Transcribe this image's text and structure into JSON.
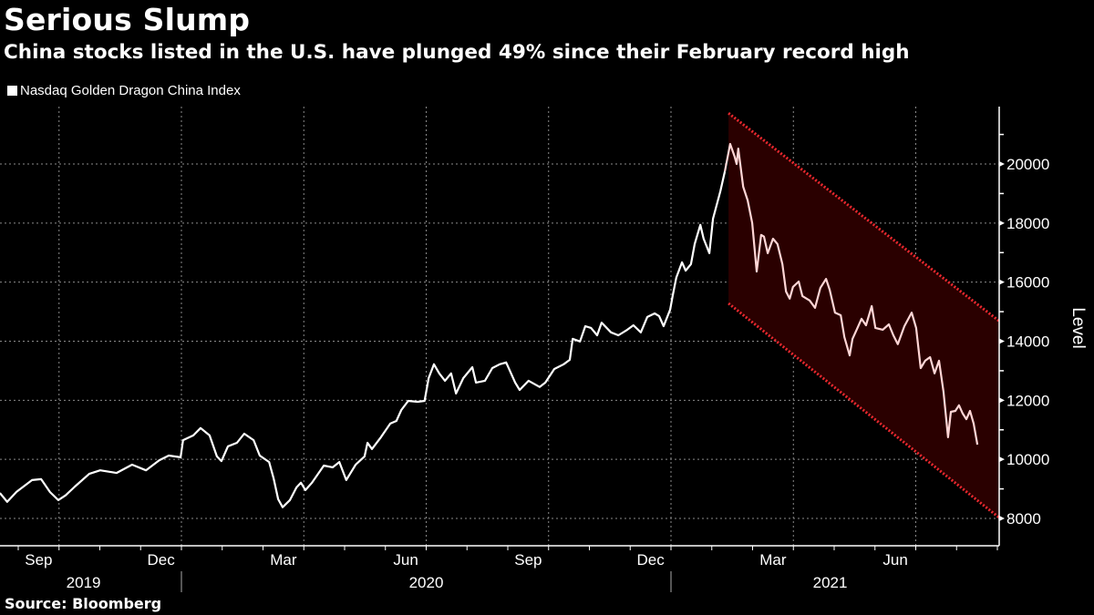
{
  "title": "Serious Slump",
  "subtitle": "China stocks listed in the U.S. have plunged 49% since their February record high",
  "source": "Source: Bloomberg",
  "colors": {
    "background": "#000000",
    "line": "#ffffff",
    "line_highlight": "#ffd6d6",
    "channel_fill": "#2a0000",
    "channel_edge": "#e8282e",
    "grid": "#8a8a8a"
  },
  "chart_data": {
    "type": "line",
    "title": "Serious Slump",
    "subtitle": "China stocks listed in the U.S. have plunged 49% since their February record high",
    "ylabel": "Level",
    "xlabel": "",
    "ylim": [
      7500,
      21900
    ],
    "y_ticks": [
      8000,
      10000,
      12000,
      14000,
      16000,
      18000,
      20000
    ],
    "y_tick_labels": [
      "8000",
      "10000",
      "12000",
      "14000",
      "16000",
      "18000",
      "20000"
    ],
    "y_axis_side": "right",
    "x_unit": "months since 2019-09-01",
    "xlim": [
      -0.45,
      24.1
    ],
    "month_ticks": [
      0,
      1,
      2,
      3,
      4,
      5,
      6,
      7,
      8,
      9,
      10,
      11,
      12,
      13,
      14,
      15,
      16,
      17,
      18,
      19,
      20,
      21,
      22,
      23,
      24
    ],
    "x_tick_labels": [
      {
        "t": 0,
        "label": "Sep"
      },
      {
        "t": 3,
        "label": "Dec"
      },
      {
        "t": 6,
        "label": "Mar"
      },
      {
        "t": 9,
        "label": "Jun"
      },
      {
        "t": 12,
        "label": "Sep"
      },
      {
        "t": 15,
        "label": "Dec"
      },
      {
        "t": 18,
        "label": "Mar"
      },
      {
        "t": 21,
        "label": "Jun"
      }
    ],
    "year_labels": [
      {
        "label": "2019",
        "t": 1.6
      },
      {
        "label": "2020",
        "t": 10.0
      },
      {
        "label": "2021",
        "t": 19.9
      }
    ],
    "year_separators": [
      4,
      16
    ],
    "grid": true,
    "vertical_grid_months": [
      1,
      4,
      7,
      10,
      13,
      16,
      19,
      22
    ],
    "legend": {
      "position": "top-left",
      "entries": [
        "Nasdaq Golden Dragon China Index"
      ]
    },
    "series": [
      {
        "name": "Nasdaq Golden Dragon China Index",
        "points": [
          [
            -0.45,
            8860
          ],
          [
            -0.27,
            8560
          ],
          [
            -0.04,
            8900
          ],
          [
            0.34,
            9300
          ],
          [
            0.56,
            9330
          ],
          [
            0.78,
            8890
          ],
          [
            0.98,
            8620
          ],
          [
            1.16,
            8780
          ],
          [
            1.39,
            9080
          ],
          [
            1.74,
            9510
          ],
          [
            2.01,
            9630
          ],
          [
            2.41,
            9540
          ],
          [
            2.79,
            9820
          ],
          [
            3.13,
            9630
          ],
          [
            3.46,
            9970
          ],
          [
            3.69,
            10130
          ],
          [
            3.98,
            10070
          ],
          [
            4.04,
            10650
          ],
          [
            4.29,
            10810
          ],
          [
            4.47,
            11060
          ],
          [
            4.69,
            10810
          ],
          [
            4.87,
            10100
          ],
          [
            4.98,
            9940
          ],
          [
            5.14,
            10440
          ],
          [
            5.36,
            10560
          ],
          [
            5.54,
            10870
          ],
          [
            5.77,
            10650
          ],
          [
            5.92,
            10130
          ],
          [
            6.15,
            9910
          ],
          [
            6.26,
            9360
          ],
          [
            6.37,
            8650
          ],
          [
            6.48,
            8380
          ],
          [
            6.66,
            8620
          ],
          [
            6.82,
            9050
          ],
          [
            6.93,
            9210
          ],
          [
            7.04,
            8960
          ],
          [
            7.2,
            9210
          ],
          [
            7.49,
            9790
          ],
          [
            7.71,
            9730
          ],
          [
            7.87,
            9910
          ],
          [
            8.04,
            9300
          ],
          [
            8.27,
            9820
          ],
          [
            8.49,
            10100
          ],
          [
            8.56,
            10560
          ],
          [
            8.67,
            10350
          ],
          [
            8.89,
            10750
          ],
          [
            9.12,
            11210
          ],
          [
            9.27,
            11300
          ],
          [
            9.39,
            11670
          ],
          [
            9.56,
            11980
          ],
          [
            9.79,
            11950
          ],
          [
            9.96,
            11980
          ],
          [
            10.06,
            12750
          ],
          [
            10.19,
            13220
          ],
          [
            10.32,
            12910
          ],
          [
            10.46,
            12660
          ],
          [
            10.61,
            12910
          ],
          [
            10.73,
            12230
          ],
          [
            10.91,
            12750
          ],
          [
            11.13,
            13120
          ],
          [
            11.22,
            12600
          ],
          [
            11.44,
            12660
          ],
          [
            11.62,
            13090
          ],
          [
            11.8,
            13220
          ],
          [
            11.96,
            13280
          ],
          [
            12.18,
            12600
          ],
          [
            12.29,
            12350
          ],
          [
            12.51,
            12660
          ],
          [
            12.78,
            12450
          ],
          [
            12.92,
            12600
          ],
          [
            13.14,
            13060
          ],
          [
            13.37,
            13220
          ],
          [
            13.52,
            13370
          ],
          [
            13.59,
            14080
          ],
          [
            13.77,
            13990
          ],
          [
            13.9,
            14510
          ],
          [
            14.04,
            14450
          ],
          [
            14.19,
            14200
          ],
          [
            14.3,
            14630
          ],
          [
            14.53,
            14300
          ],
          [
            14.71,
            14200
          ],
          [
            14.93,
            14390
          ],
          [
            15.08,
            14540
          ],
          [
            15.26,
            14300
          ],
          [
            15.42,
            14820
          ],
          [
            15.6,
            14940
          ],
          [
            15.71,
            14850
          ],
          [
            15.82,
            14510
          ],
          [
            15.98,
            15070
          ],
          [
            16.04,
            15530
          ],
          [
            16.13,
            16150
          ],
          [
            16.27,
            16670
          ],
          [
            16.36,
            16390
          ],
          [
            16.49,
            16610
          ],
          [
            16.58,
            17290
          ],
          [
            16.72,
            17940
          ],
          [
            16.8,
            17470
          ],
          [
            16.94,
            16980
          ],
          [
            17.03,
            18150
          ],
          [
            17.21,
            19070
          ],
          [
            17.32,
            19750
          ],
          [
            17.45,
            20680
          ],
          [
            17.56,
            20250
          ],
          [
            17.61,
            20000
          ],
          [
            17.65,
            20520
          ],
          [
            17.77,
            19230
          ],
          [
            17.88,
            18770
          ],
          [
            17.99,
            18000
          ],
          [
            18.1,
            16360
          ],
          [
            18.21,
            17600
          ],
          [
            18.28,
            17540
          ],
          [
            18.37,
            16980
          ],
          [
            18.5,
            17470
          ],
          [
            18.61,
            17290
          ],
          [
            18.73,
            16610
          ],
          [
            18.82,
            15680
          ],
          [
            18.91,
            15440
          ],
          [
            18.99,
            15840
          ],
          [
            19.13,
            16020
          ],
          [
            19.22,
            15530
          ],
          [
            19.4,
            15380
          ],
          [
            19.53,
            15130
          ],
          [
            19.66,
            15800
          ],
          [
            19.8,
            16110
          ],
          [
            19.89,
            15740
          ],
          [
            20.02,
            14970
          ],
          [
            20.16,
            14880
          ],
          [
            20.25,
            14140
          ],
          [
            20.38,
            13520
          ],
          [
            20.45,
            14080
          ],
          [
            20.56,
            14420
          ],
          [
            20.67,
            14760
          ],
          [
            20.78,
            14540
          ],
          [
            20.92,
            15190
          ],
          [
            21.01,
            14450
          ],
          [
            21.19,
            14390
          ],
          [
            21.34,
            14570
          ],
          [
            21.45,
            14200
          ],
          [
            21.56,
            13900
          ],
          [
            21.72,
            14510
          ],
          [
            21.9,
            14970
          ],
          [
            22.01,
            14450
          ],
          [
            22.12,
            13090
          ],
          [
            22.23,
            13340
          ],
          [
            22.35,
            13460
          ],
          [
            22.46,
            12910
          ],
          [
            22.57,
            13340
          ],
          [
            22.68,
            12290
          ],
          [
            22.79,
            10750
          ],
          [
            22.86,
            11610
          ],
          [
            22.97,
            11640
          ],
          [
            23.06,
            11830
          ],
          [
            23.15,
            11550
          ],
          [
            23.24,
            11360
          ],
          [
            23.33,
            11640
          ],
          [
            23.42,
            11210
          ],
          [
            23.51,
            10500
          ]
        ]
      }
    ],
    "highlight_from_t": 17.41,
    "annotations": [
      {
        "type": "trend-channel",
        "label": "downtrend channel",
        "upper": [
          [
            17.41,
            21720
          ],
          [
            24.04,
            14690
          ]
        ],
        "lower": [
          [
            17.41,
            15280
          ],
          [
            24.04,
            8030
          ]
        ]
      }
    ]
  }
}
